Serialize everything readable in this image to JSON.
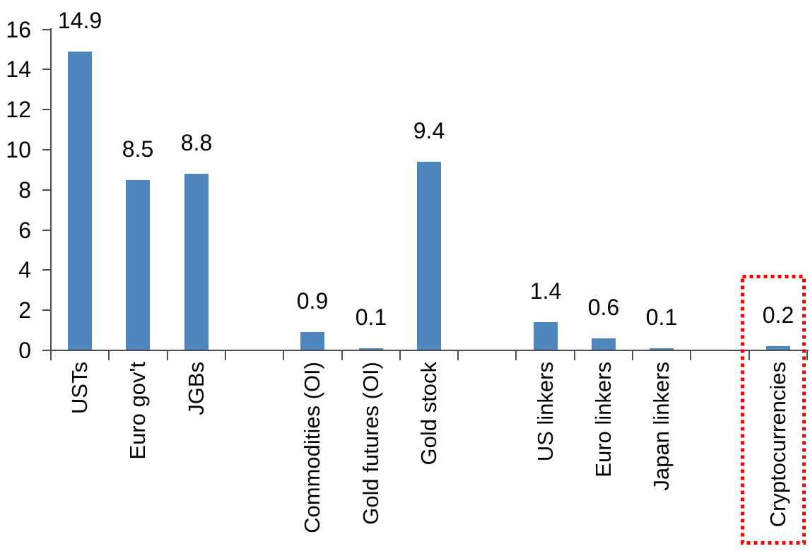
{
  "chart_data": {
    "type": "bar",
    "title": "",
    "categories": [
      "USTs",
      "Euro gov't",
      "JGBs",
      "Commodities (OI)",
      "Gold futures (OI)",
      "Gold stock",
      "US linkers",
      "Euro linkers",
      "Japan linkers",
      "Cryptocurrencies"
    ],
    "values": [
      14.9,
      8.5,
      8.8,
      0.9,
      0.1,
      9.4,
      1.4,
      0.6,
      0.1,
      0.2
    ],
    "data_labels": [
      "14.9",
      "8.5",
      "8.8",
      "0.9",
      "0.1",
      "9.4",
      "1.4",
      "0.6",
      "0.1",
      "0.2"
    ],
    "slot_layout": {
      "n_slots": 13,
      "slots": [
        0,
        1,
        2,
        4,
        5,
        6,
        8,
        9,
        10,
        12
      ],
      "note": "empty slots 3, 7 and 11 separate the category groups"
    },
    "xlabel": "",
    "ylabel": "",
    "ylim": [
      0,
      16
    ],
    "y_ticks": [
      0,
      2,
      4,
      6,
      8,
      10,
      12,
      14,
      16
    ],
    "y_tick_labels": [
      "0",
      "2",
      "4",
      "6",
      "8",
      "10",
      "12",
      "14",
      "16"
    ],
    "grid": false,
    "legend": false,
    "bar_color": "#4E86BD",
    "axis_color": "#4D4D4D",
    "text_color": "#000000",
    "background_color": "#FFFFFF",
    "highlight": {
      "category": "Cryptocurrencies",
      "style": "red-dotted-box",
      "color": "#FF0000"
    }
  }
}
